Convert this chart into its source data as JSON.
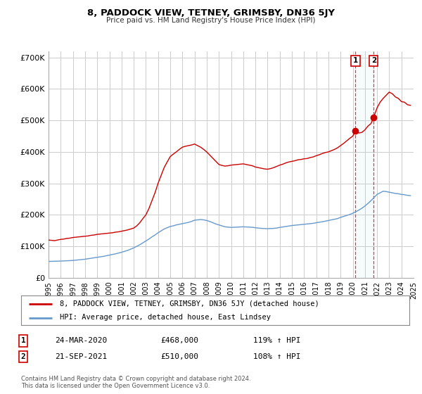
{
  "title": "8, PADDOCK VIEW, TETNEY, GRIMSBY, DN36 5JY",
  "subtitle": "Price paid vs. HM Land Registry's House Price Index (HPI)",
  "background_color": "#ffffff",
  "plot_bg_color": "#ffffff",
  "grid_color": "#cccccc",
  "red_line_color": "#cc0000",
  "blue_line_color": "#6699cc",
  "marker1_date": 2020.22,
  "marker1_value": 468000,
  "marker2_date": 2021.72,
  "marker2_value": 510000,
  "vline1_date": 2020.22,
  "vline2_date": 2021.72,
  "legend_label_red": "8, PADDOCK VIEW, TETNEY, GRIMSBY, DN36 5JY (detached house)",
  "legend_label_blue": "HPI: Average price, detached house, East Lindsey",
  "annotation1_date": "24-MAR-2020",
  "annotation1_price": "£468,000",
  "annotation1_hpi": "119% ↑ HPI",
  "annotation2_date": "21-SEP-2021",
  "annotation2_price": "£510,000",
  "annotation2_hpi": "108% ↑ HPI",
  "footer1": "Contains HM Land Registry data © Crown copyright and database right 2024.",
  "footer2": "This data is licensed under the Open Government Licence v3.0.",
  "ylim": [
    0,
    720000
  ],
  "xlim": [
    1995,
    2025
  ],
  "yticks": [
    0,
    100000,
    200000,
    300000,
    400000,
    500000,
    600000,
    700000
  ],
  "ytick_labels": [
    "£0",
    "£100K",
    "£200K",
    "£300K",
    "£400K",
    "£500K",
    "£600K",
    "£700K"
  ],
  "xticks": [
    1995,
    1996,
    1997,
    1998,
    1999,
    2000,
    2001,
    2002,
    2003,
    2004,
    2005,
    2006,
    2007,
    2008,
    2009,
    2010,
    2011,
    2012,
    2013,
    2014,
    2015,
    2016,
    2017,
    2018,
    2019,
    2020,
    2021,
    2022,
    2023,
    2024,
    2025
  ],
  "red_x": [
    1995.0,
    1995.25,
    1995.5,
    1995.75,
    1996.0,
    1996.25,
    1996.5,
    1996.75,
    1997.0,
    1997.25,
    1997.5,
    1997.75,
    1998.0,
    1998.25,
    1998.5,
    1998.75,
    1999.0,
    1999.25,
    1999.5,
    1999.75,
    2000.0,
    2000.25,
    2000.5,
    2000.75,
    2001.0,
    2001.25,
    2001.5,
    2001.75,
    2002.0,
    2002.25,
    2002.5,
    2002.75,
    2003.0,
    2003.25,
    2003.5,
    2003.75,
    2004.0,
    2004.25,
    2004.5,
    2004.75,
    2005.0,
    2005.25,
    2005.5,
    2005.75,
    2006.0,
    2006.25,
    2006.5,
    2006.75,
    2007.0,
    2007.25,
    2007.5,
    2007.75,
    2008.0,
    2008.25,
    2008.5,
    2008.75,
    2009.0,
    2009.25,
    2009.5,
    2009.75,
    2010.0,
    2010.25,
    2010.5,
    2010.75,
    2011.0,
    2011.25,
    2011.5,
    2011.75,
    2012.0,
    2012.25,
    2012.5,
    2012.75,
    2013.0,
    2013.25,
    2013.5,
    2013.75,
    2014.0,
    2014.25,
    2014.5,
    2014.75,
    2015.0,
    2015.25,
    2015.5,
    2015.75,
    2016.0,
    2016.25,
    2016.5,
    2016.75,
    2017.0,
    2017.25,
    2017.5,
    2017.75,
    2018.0,
    2018.25,
    2018.5,
    2018.75,
    2019.0,
    2019.25,
    2019.5,
    2019.75,
    2020.0,
    2020.22,
    2020.5,
    2020.75,
    2021.0,
    2021.25,
    2021.5,
    2021.72,
    2022.0,
    2022.25,
    2022.5,
    2022.75,
    2023.0,
    2023.25,
    2023.5,
    2023.75,
    2024.0,
    2024.25,
    2024.5,
    2024.75
  ],
  "red_y": [
    120000,
    119000,
    118000,
    120000,
    122000,
    123000,
    125000,
    126000,
    128000,
    129000,
    130000,
    131000,
    132000,
    133000,
    135000,
    136000,
    138000,
    139000,
    140000,
    141000,
    142000,
    143000,
    145000,
    146000,
    148000,
    150000,
    152000,
    155000,
    158000,
    165000,
    175000,
    188000,
    200000,
    220000,
    245000,
    270000,
    300000,
    325000,
    350000,
    368000,
    385000,
    393000,
    400000,
    408000,
    415000,
    418000,
    420000,
    422000,
    425000,
    420000,
    415000,
    408000,
    400000,
    390000,
    380000,
    370000,
    360000,
    357000,
    355000,
    356000,
    358000,
    359000,
    360000,
    361000,
    362000,
    360000,
    358000,
    356000,
    352000,
    350000,
    348000,
    346000,
    345000,
    347000,
    350000,
    354000,
    358000,
    361000,
    365000,
    368000,
    370000,
    372000,
    375000,
    376000,
    378000,
    379000,
    382000,
    384000,
    388000,
    391000,
    395000,
    398000,
    400000,
    404000,
    408000,
    413000,
    420000,
    427000,
    435000,
    443000,
    450000,
    468000,
    460000,
    462000,
    470000,
    482000,
    490000,
    510000,
    540000,
    558000,
    570000,
    580000,
    590000,
    585000,
    575000,
    570000,
    560000,
    558000,
    550000,
    548000
  ],
  "blue_x": [
    1995.0,
    1995.25,
    1995.5,
    1995.75,
    1996.0,
    1996.25,
    1996.5,
    1996.75,
    1997.0,
    1997.25,
    1997.5,
    1997.75,
    1998.0,
    1998.25,
    1998.5,
    1998.75,
    1999.0,
    1999.25,
    1999.5,
    1999.75,
    2000.0,
    2000.25,
    2000.5,
    2000.75,
    2001.0,
    2001.25,
    2001.5,
    2001.75,
    2002.0,
    2002.25,
    2002.5,
    2002.75,
    2003.0,
    2003.25,
    2003.5,
    2003.75,
    2004.0,
    2004.25,
    2004.5,
    2004.75,
    2005.0,
    2005.25,
    2005.5,
    2005.75,
    2006.0,
    2006.25,
    2006.5,
    2006.75,
    2007.0,
    2007.25,
    2007.5,
    2007.75,
    2008.0,
    2008.25,
    2008.5,
    2008.75,
    2009.0,
    2009.25,
    2009.5,
    2009.75,
    2010.0,
    2010.25,
    2010.5,
    2010.75,
    2011.0,
    2011.25,
    2011.5,
    2011.75,
    2012.0,
    2012.25,
    2012.5,
    2012.75,
    2013.0,
    2013.25,
    2013.5,
    2013.75,
    2014.0,
    2014.25,
    2014.5,
    2014.75,
    2015.0,
    2015.25,
    2015.5,
    2015.75,
    2016.0,
    2016.25,
    2016.5,
    2016.75,
    2017.0,
    2017.25,
    2017.5,
    2017.75,
    2018.0,
    2018.25,
    2018.5,
    2018.75,
    2019.0,
    2019.25,
    2019.5,
    2019.75,
    2020.0,
    2020.25,
    2020.5,
    2020.75,
    2021.0,
    2021.25,
    2021.5,
    2021.75,
    2022.0,
    2022.25,
    2022.5,
    2022.75,
    2023.0,
    2023.25,
    2023.5,
    2023.75,
    2024.0,
    2024.25,
    2024.5,
    2024.75
  ],
  "blue_y": [
    52000,
    52200,
    52500,
    52800,
    53000,
    53500,
    54000,
    54500,
    55000,
    56000,
    57000,
    58000,
    59000,
    60500,
    62000,
    63500,
    65000,
    66500,
    68000,
    70000,
    72000,
    74000,
    76000,
    78500,
    81000,
    84000,
    87000,
    91000,
    95000,
    100000,
    105000,
    111000,
    117000,
    123000,
    130000,
    136000,
    143000,
    149000,
    155000,
    159000,
    163000,
    165000,
    168000,
    170000,
    172000,
    174000,
    176000,
    179000,
    183000,
    184000,
    185000,
    184000,
    182000,
    179000,
    175000,
    171000,
    168000,
    165000,
    162000,
    161000,
    160000,
    160500,
    161000,
    161500,
    162000,
    161500,
    161000,
    160500,
    159000,
    158000,
    157000,
    156500,
    156000,
    156500,
    157000,
    158000,
    160000,
    161500,
    163000,
    164500,
    166000,
    167000,
    168000,
    169000,
    170000,
    171000,
    172000,
    173000,
    175000,
    176500,
    178000,
    180000,
    182000,
    184000,
    186000,
    188000,
    192000,
    195000,
    198000,
    201000,
    205000,
    210000,
    215000,
    221000,
    228000,
    236000,
    245000,
    255000,
    265000,
    270000,
    275000,
    274000,
    272000,
    270000,
    268000,
    267000,
    265000,
    264000,
    262000,
    261000
  ]
}
